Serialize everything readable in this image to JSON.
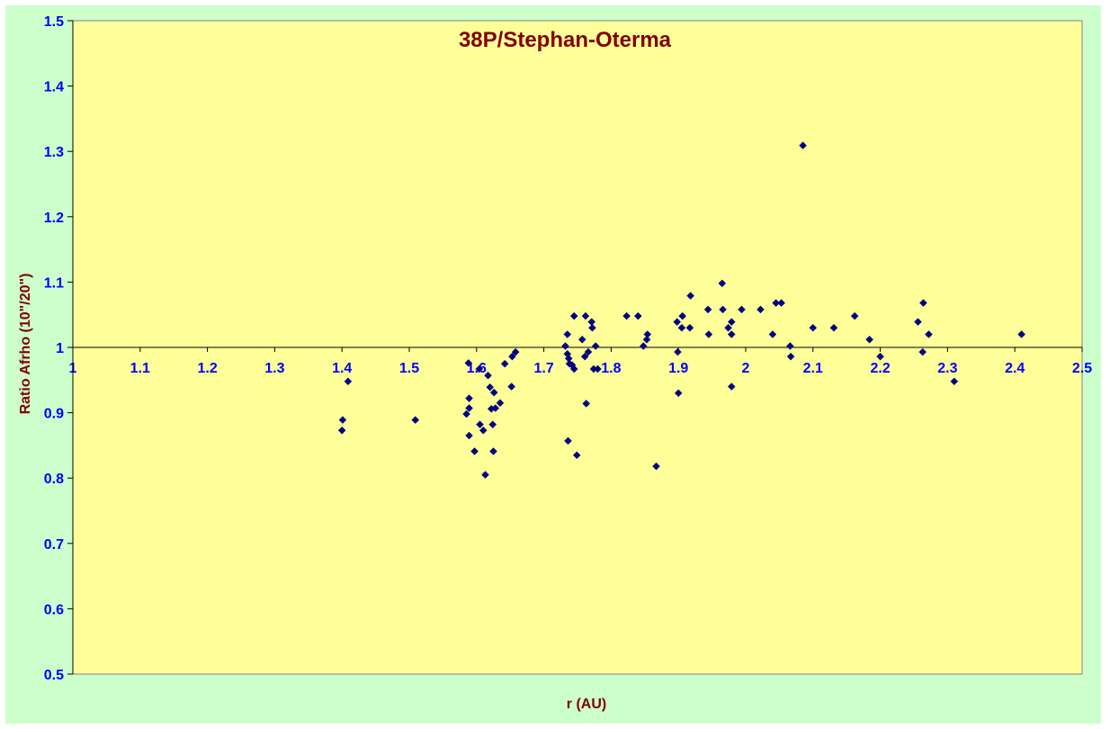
{
  "chart_data": {
    "type": "scatter",
    "title": "38P/Stephan-Oterma",
    "xlabel": "r (AU)",
    "ylabel": "Ratio Afrho (10\"/20\")",
    "xlim": [
      1,
      2.5
    ],
    "ylim": [
      0.5,
      1.5
    ],
    "x_ticks": [
      "1",
      "1.1",
      "1.2",
      "1.3",
      "1.4",
      "1.5",
      "1.6",
      "1.7",
      "1.8",
      "1.9",
      "2",
      "2.1",
      "2.2",
      "2.3",
      "2.4",
      "2.5"
    ],
    "y_ticks": [
      "0.5",
      "0.6",
      "0.7",
      "0.8",
      "0.9",
      "1",
      "1.1",
      "1.2",
      "1.3",
      "1.4",
      "1.5"
    ],
    "x_axis_crosses_y": 1,
    "grid": false,
    "legend": "none",
    "colors": {
      "plot_background": "#ffff99",
      "chart_background": "#ccffcc",
      "marker": "#000080",
      "title": "#800000",
      "tick_labels": "#0000ff"
    },
    "series": [
      {
        "points": [
          [
            1.4,
            0.873
          ],
          [
            1.401,
            0.889
          ],
          [
            1.409,
            0.948
          ],
          [
            1.509,
            0.889
          ],
          [
            1.585,
            0.898
          ],
          [
            1.588,
            0.976
          ],
          [
            1.589,
            0.865
          ],
          [
            1.589,
            0.907
          ],
          [
            1.589,
            0.922
          ],
          [
            1.597,
            0.841
          ],
          [
            1.604,
            0.967
          ],
          [
            1.605,
            0.882
          ],
          [
            1.61,
            0.873
          ],
          [
            1.613,
            0.805
          ],
          [
            1.617,
            0.957
          ],
          [
            1.62,
            0.939
          ],
          [
            1.622,
            0.906
          ],
          [
            1.624,
            0.882
          ],
          [
            1.625,
            0.841
          ],
          [
            1.626,
            0.931
          ],
          [
            1.628,
            0.907
          ],
          [
            1.635,
            0.915
          ],
          [
            1.642,
            0.975
          ],
          [
            1.652,
            0.94
          ],
          [
            1.653,
            0.986
          ],
          [
            1.658,
            0.993
          ],
          [
            1.732,
            1.002
          ],
          [
            1.735,
            1.02
          ],
          [
            1.735,
            0.99
          ],
          [
            1.736,
            0.857
          ],
          [
            1.737,
            0.983
          ],
          [
            1.738,
            0.975
          ],
          [
            1.742,
            0.973
          ],
          [
            1.745,
            1.048
          ],
          [
            1.745,
            0.967
          ],
          [
            1.749,
            0.835
          ],
          [
            1.757,
            1.012
          ],
          [
            1.761,
            0.986
          ],
          [
            1.762,
            1.048
          ],
          [
            1.763,
            0.914
          ],
          [
            1.766,
            0.993
          ],
          [
            1.771,
            1.039
          ],
          [
            1.772,
            1.03
          ],
          [
            1.774,
            0.967
          ],
          [
            1.777,
            1.002
          ],
          [
            1.78,
            0.967
          ],
          [
            1.823,
            1.048
          ],
          [
            1.84,
            1.048
          ],
          [
            1.848,
            1.002
          ],
          [
            1.853,
            1.012
          ],
          [
            1.854,
            1.02
          ],
          [
            1.867,
            0.818
          ],
          [
            1.898,
            1.039
          ],
          [
            1.899,
            0.993
          ],
          [
            1.9,
            0.93
          ],
          [
            1.905,
            1.03
          ],
          [
            1.906,
            1.048
          ],
          [
            1.917,
            1.03
          ],
          [
            1.918,
            1.079
          ],
          [
            1.944,
            1.058
          ],
          [
            1.945,
            1.02
          ],
          [
            1.965,
            1.098
          ],
          [
            1.966,
            1.058
          ],
          [
            1.974,
            1.03
          ],
          [
            1.979,
            1.02
          ],
          [
            1.979,
            1.039
          ],
          [
            1.979,
            0.94
          ],
          [
            1.994,
            1.058
          ],
          [
            2.022,
            1.058
          ],
          [
            2.04,
            1.02
          ],
          [
            2.045,
            1.068
          ],
          [
            2.053,
            1.068
          ],
          [
            2.066,
            1.002
          ],
          [
            2.067,
            0.986
          ],
          [
            2.085,
            1.309
          ],
          [
            2.1,
            1.03
          ],
          [
            2.131,
            1.03
          ],
          [
            2.162,
            1.048
          ],
          [
            2.184,
            1.012
          ],
          [
            2.2,
            0.986
          ],
          [
            2.256,
            1.039
          ],
          [
            2.263,
            0.993
          ],
          [
            2.264,
            1.068
          ],
          [
            2.272,
            1.02
          ],
          [
            2.31,
            0.948
          ],
          [
            2.41,
            1.02
          ]
        ]
      }
    ]
  }
}
